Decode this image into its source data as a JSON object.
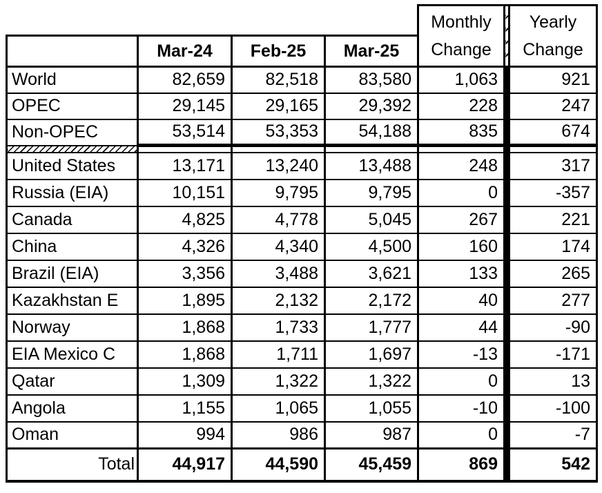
{
  "page": {
    "background_color": "#ffffff",
    "text_color": "#000000",
    "border_color": "#000000"
  },
  "table": {
    "header": {
      "corner": "",
      "months": [
        "Mar-24",
        "Feb-25",
        "Mar-25"
      ],
      "monthly_change": {
        "line1": "Monthly",
        "line2": "Change"
      },
      "yearly_change": {
        "line1": "Yearly",
        "line2": "Change"
      }
    },
    "summary_rows": [
      {
        "label": "World",
        "values": [
          "82,659",
          "82,518",
          "83,580",
          "1,063",
          "921"
        ]
      },
      {
        "label": "OPEC",
        "values": [
          "29,145",
          "29,165",
          "29,392",
          "228",
          "247"
        ]
      },
      {
        "label": "Non-OPEC",
        "values": [
          "53,514",
          "53,353",
          "54,188",
          "835",
          "674"
        ]
      }
    ],
    "country_rows": [
      {
        "label": "United States",
        "values": [
          "13,171",
          "13,240",
          "13,488",
          "248",
          "317"
        ]
      },
      {
        "label": "Russia (EIA)",
        "values": [
          "10,151",
          "9,795",
          "9,795",
          "0",
          "-357"
        ]
      },
      {
        "label": "Canada",
        "values": [
          "4,825",
          "4,778",
          "5,045",
          "267",
          "221"
        ]
      },
      {
        "label": "China",
        "values": [
          "4,326",
          "4,340",
          "4,500",
          "160",
          "174"
        ]
      },
      {
        "label": "Brazil (EIA)",
        "values": [
          "3,356",
          "3,488",
          "3,621",
          "133",
          "265"
        ]
      },
      {
        "label": "Kazakhstan E",
        "values": [
          "1,895",
          "2,132",
          "2,172",
          "40",
          "277"
        ]
      },
      {
        "label": "Norway",
        "values": [
          "1,868",
          "1,733",
          "1,777",
          "44",
          "-90"
        ]
      },
      {
        "label": "EIA Mexico C",
        "values": [
          "1,868",
          "1,711",
          "1,697",
          "-13",
          "-171"
        ]
      },
      {
        "label": "Qatar",
        "values": [
          "1,309",
          "1,322",
          "1,322",
          "0",
          "13"
        ]
      },
      {
        "label": "Angola",
        "values": [
          "1,155",
          "1,065",
          "1,055",
          "-10",
          "-100"
        ]
      },
      {
        "label": "Oman",
        "values": [
          "994",
          "986",
          "987",
          "0",
          "-7"
        ]
      }
    ],
    "total_row": {
      "label": "Total",
      "values": [
        "44,917",
        "44,590",
        "45,459",
        "869",
        "542"
      ]
    }
  }
}
